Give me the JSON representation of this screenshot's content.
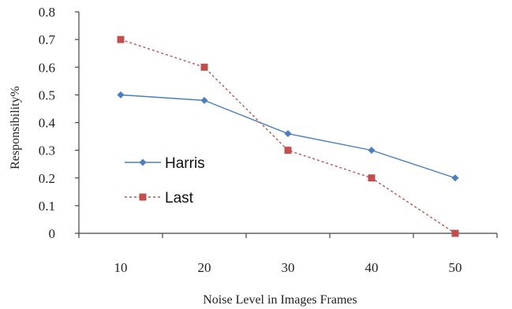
{
  "chart_data": {
    "type": "line",
    "x": [
      10,
      20,
      30,
      40,
      50
    ],
    "xtick_labels": [
      "10",
      "20",
      "30",
      "40",
      "50"
    ],
    "ylim": [
      0,
      0.8
    ],
    "ytick_labels": [
      "0",
      "0.1",
      "0.2",
      "0.3",
      "0.4",
      "0.5",
      "0.6",
      "0.7",
      "0.8"
    ],
    "xlabel": "Noise Level in Images Frames",
    "ylabel": "Responsibility%",
    "grid": false,
    "legend_position": "left",
    "series": [
      {
        "name": "Harris",
        "values": [
          0.5,
          0.48,
          0.36,
          0.3,
          0.2
        ],
        "color": "#4a7ec0",
        "marker": "diamond",
        "line_style": "solid"
      },
      {
        "name": "Last",
        "values": [
          0.7,
          0.6,
          0.3,
          0.2,
          0.0
        ],
        "color": "#c0504d",
        "marker": "square",
        "line_style": "dashed"
      }
    ]
  }
}
